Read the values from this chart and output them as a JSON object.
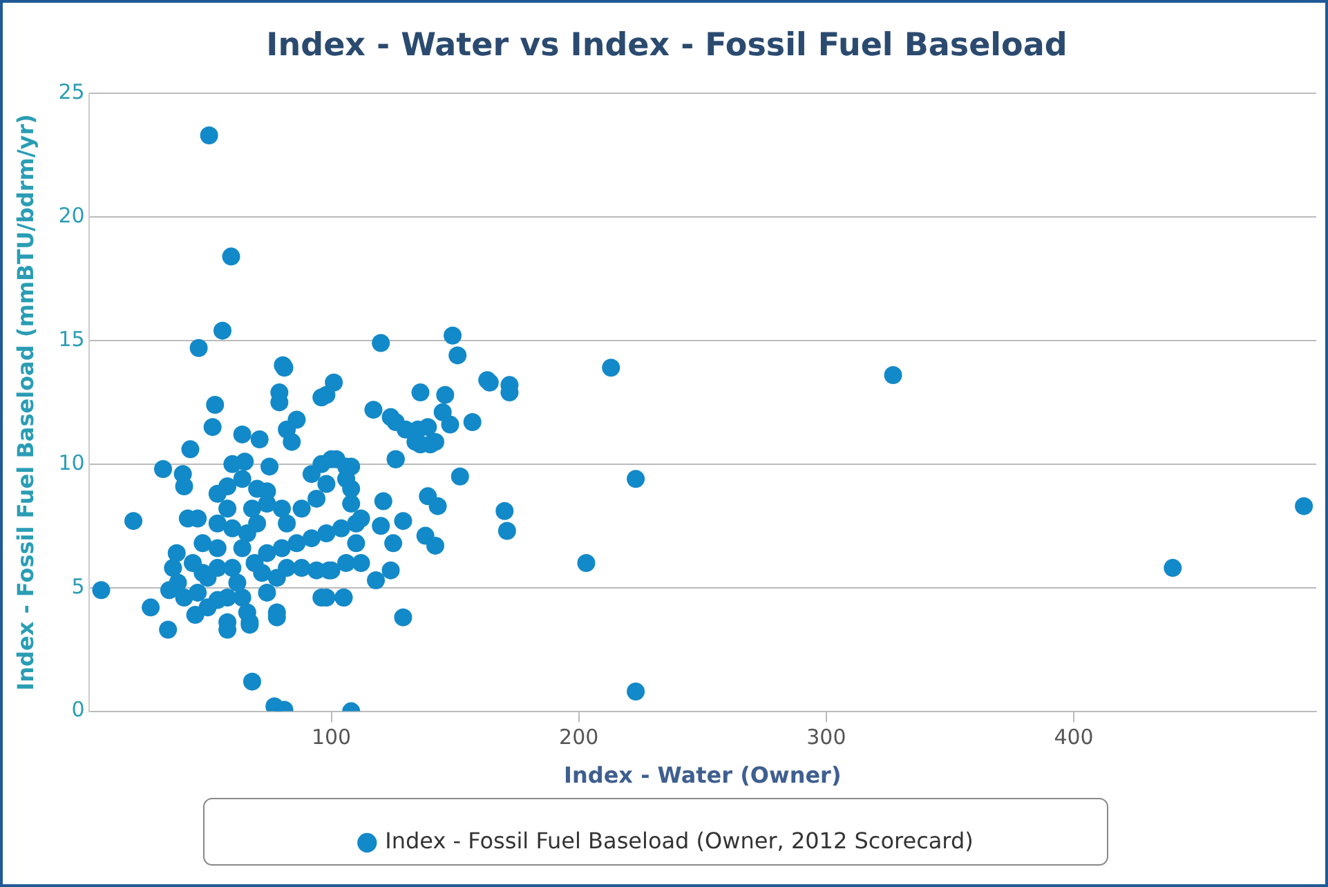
{
  "chart_data": {
    "type": "scatter",
    "title": "Index - Water vs Index - Fossil Fuel Baseload",
    "xlabel": "Index - Water (Owner)",
    "ylabel": "Index - Fossil Fuel Baseload (mmBTU/bdrm/yr)",
    "xlim": [
      2,
      498
    ],
    "xticks": [
      100,
      200,
      300,
      400
    ],
    "ylim": [
      0,
      25
    ],
    "yticks": [
      0,
      5,
      10,
      15,
      20,
      25
    ],
    "grid": "y",
    "legend": "bottom",
    "marker": "circle",
    "x": [
      50.6,
      59.5,
      56,
      46.4,
      80.4,
      120,
      149,
      151,
      213,
      327,
      164,
      172,
      172,
      101,
      98,
      136,
      146,
      117,
      157,
      126,
      130,
      139,
      148,
      142,
      134,
      126,
      152,
      223,
      170,
      171,
      203,
      440,
      493,
      223,
      129,
      108,
      81,
      77,
      68,
      7,
      20,
      32,
      27,
      34,
      40,
      43,
      53,
      52,
      64,
      71,
      75,
      65,
      58,
      58,
      67,
      78,
      78,
      105,
      96,
      96,
      86,
      82,
      84,
      79,
      79,
      81,
      40.5,
      42,
      46,
      54,
      60,
      64,
      70,
      74,
      58,
      60,
      64,
      54,
      48,
      37.5,
      36,
      38,
      34.5,
      40.5,
      46,
      50,
      54,
      60,
      62,
      64,
      66,
      58,
      54,
      50,
      45,
      58,
      67,
      74,
      78,
      82,
      88,
      94,
      100,
      106,
      98,
      105,
      74,
      80,
      86,
      92,
      98,
      104,
      110,
      82,
      88,
      94,
      98,
      92,
      96,
      102,
      108,
      106,
      108,
      110,
      80,
      74,
      68,
      70,
      66,
      54,
      44,
      48,
      72,
      69,
      145,
      124,
      135,
      136,
      140,
      163,
      126,
      121,
      139,
      143,
      129,
      120,
      112,
      108,
      100,
      106,
      125,
      138,
      142,
      124,
      118,
      112,
      99
    ],
    "series": [
      {
        "name": "Index - Fossil Fuel Baseload (Owner, 2012 Scorecard)",
        "color": "#1289c8",
        "values": [
          23.3,
          18.4,
          15.4,
          14.7,
          14.0,
          14.9,
          15.2,
          14.4,
          13.9,
          13.6,
          13.3,
          13.2,
          12.9,
          13.3,
          12.8,
          12.9,
          12.8,
          12.2,
          11.7,
          11.7,
          11.4,
          11.5,
          11.6,
          10.9,
          10.9,
          10.2,
          9.5,
          9.4,
          8.1,
          7.3,
          6.0,
          5.8,
          8.3,
          0.8,
          3.8,
          0,
          0.06,
          0.2,
          1.2,
          4.9,
          7.7,
          9.8,
          4.2,
          3.3,
          9.6,
          10.6,
          12.4,
          11.5,
          11.2,
          11.0,
          9.9,
          10.1,
          9.1,
          3.6,
          3.5,
          3.8,
          4.0,
          4.6,
          4.6,
          12.7,
          11.8,
          11.4,
          10.9,
          12.5,
          12.9,
          13.9,
          9.1,
          7.8,
          7.8,
          8.8,
          10.0,
          9.4,
          9.0,
          8.9,
          8.2,
          7.4,
          6.6,
          6.6,
          6.8,
          6.4,
          5.8,
          5.2,
          4.9,
          4.6,
          4.8,
          5.4,
          5.8,
          5.8,
          5.2,
          4.6,
          4.0,
          4.6,
          4.5,
          4.2,
          3.9,
          3.3,
          3.6,
          4.8,
          5.4,
          5.8,
          5.8,
          5.7,
          5.7,
          6.0,
          4.6,
          4.6,
          6.4,
          6.6,
          6.8,
          7.0,
          7.2,
          7.4,
          7.6,
          7.6,
          8.2,
          8.6,
          9.2,
          9.6,
          10.0,
          10.2,
          9.9,
          9.4,
          8.4,
          6.8,
          8.2,
          8.4,
          8.2,
          7.6,
          7.2,
          7.6,
          6.0,
          5.6,
          5.6,
          6.0,
          12.1,
          11.9,
          11.4,
          10.8,
          10.8,
          13.4,
          10.2,
          8.5,
          8.7,
          8.3,
          7.7,
          7.5,
          7.8,
          9.0,
          10.2,
          9.9,
          6.8,
          7.1,
          6.7,
          5.7,
          5.3,
          6.0,
          5.7
        ]
      }
    ]
  }
}
